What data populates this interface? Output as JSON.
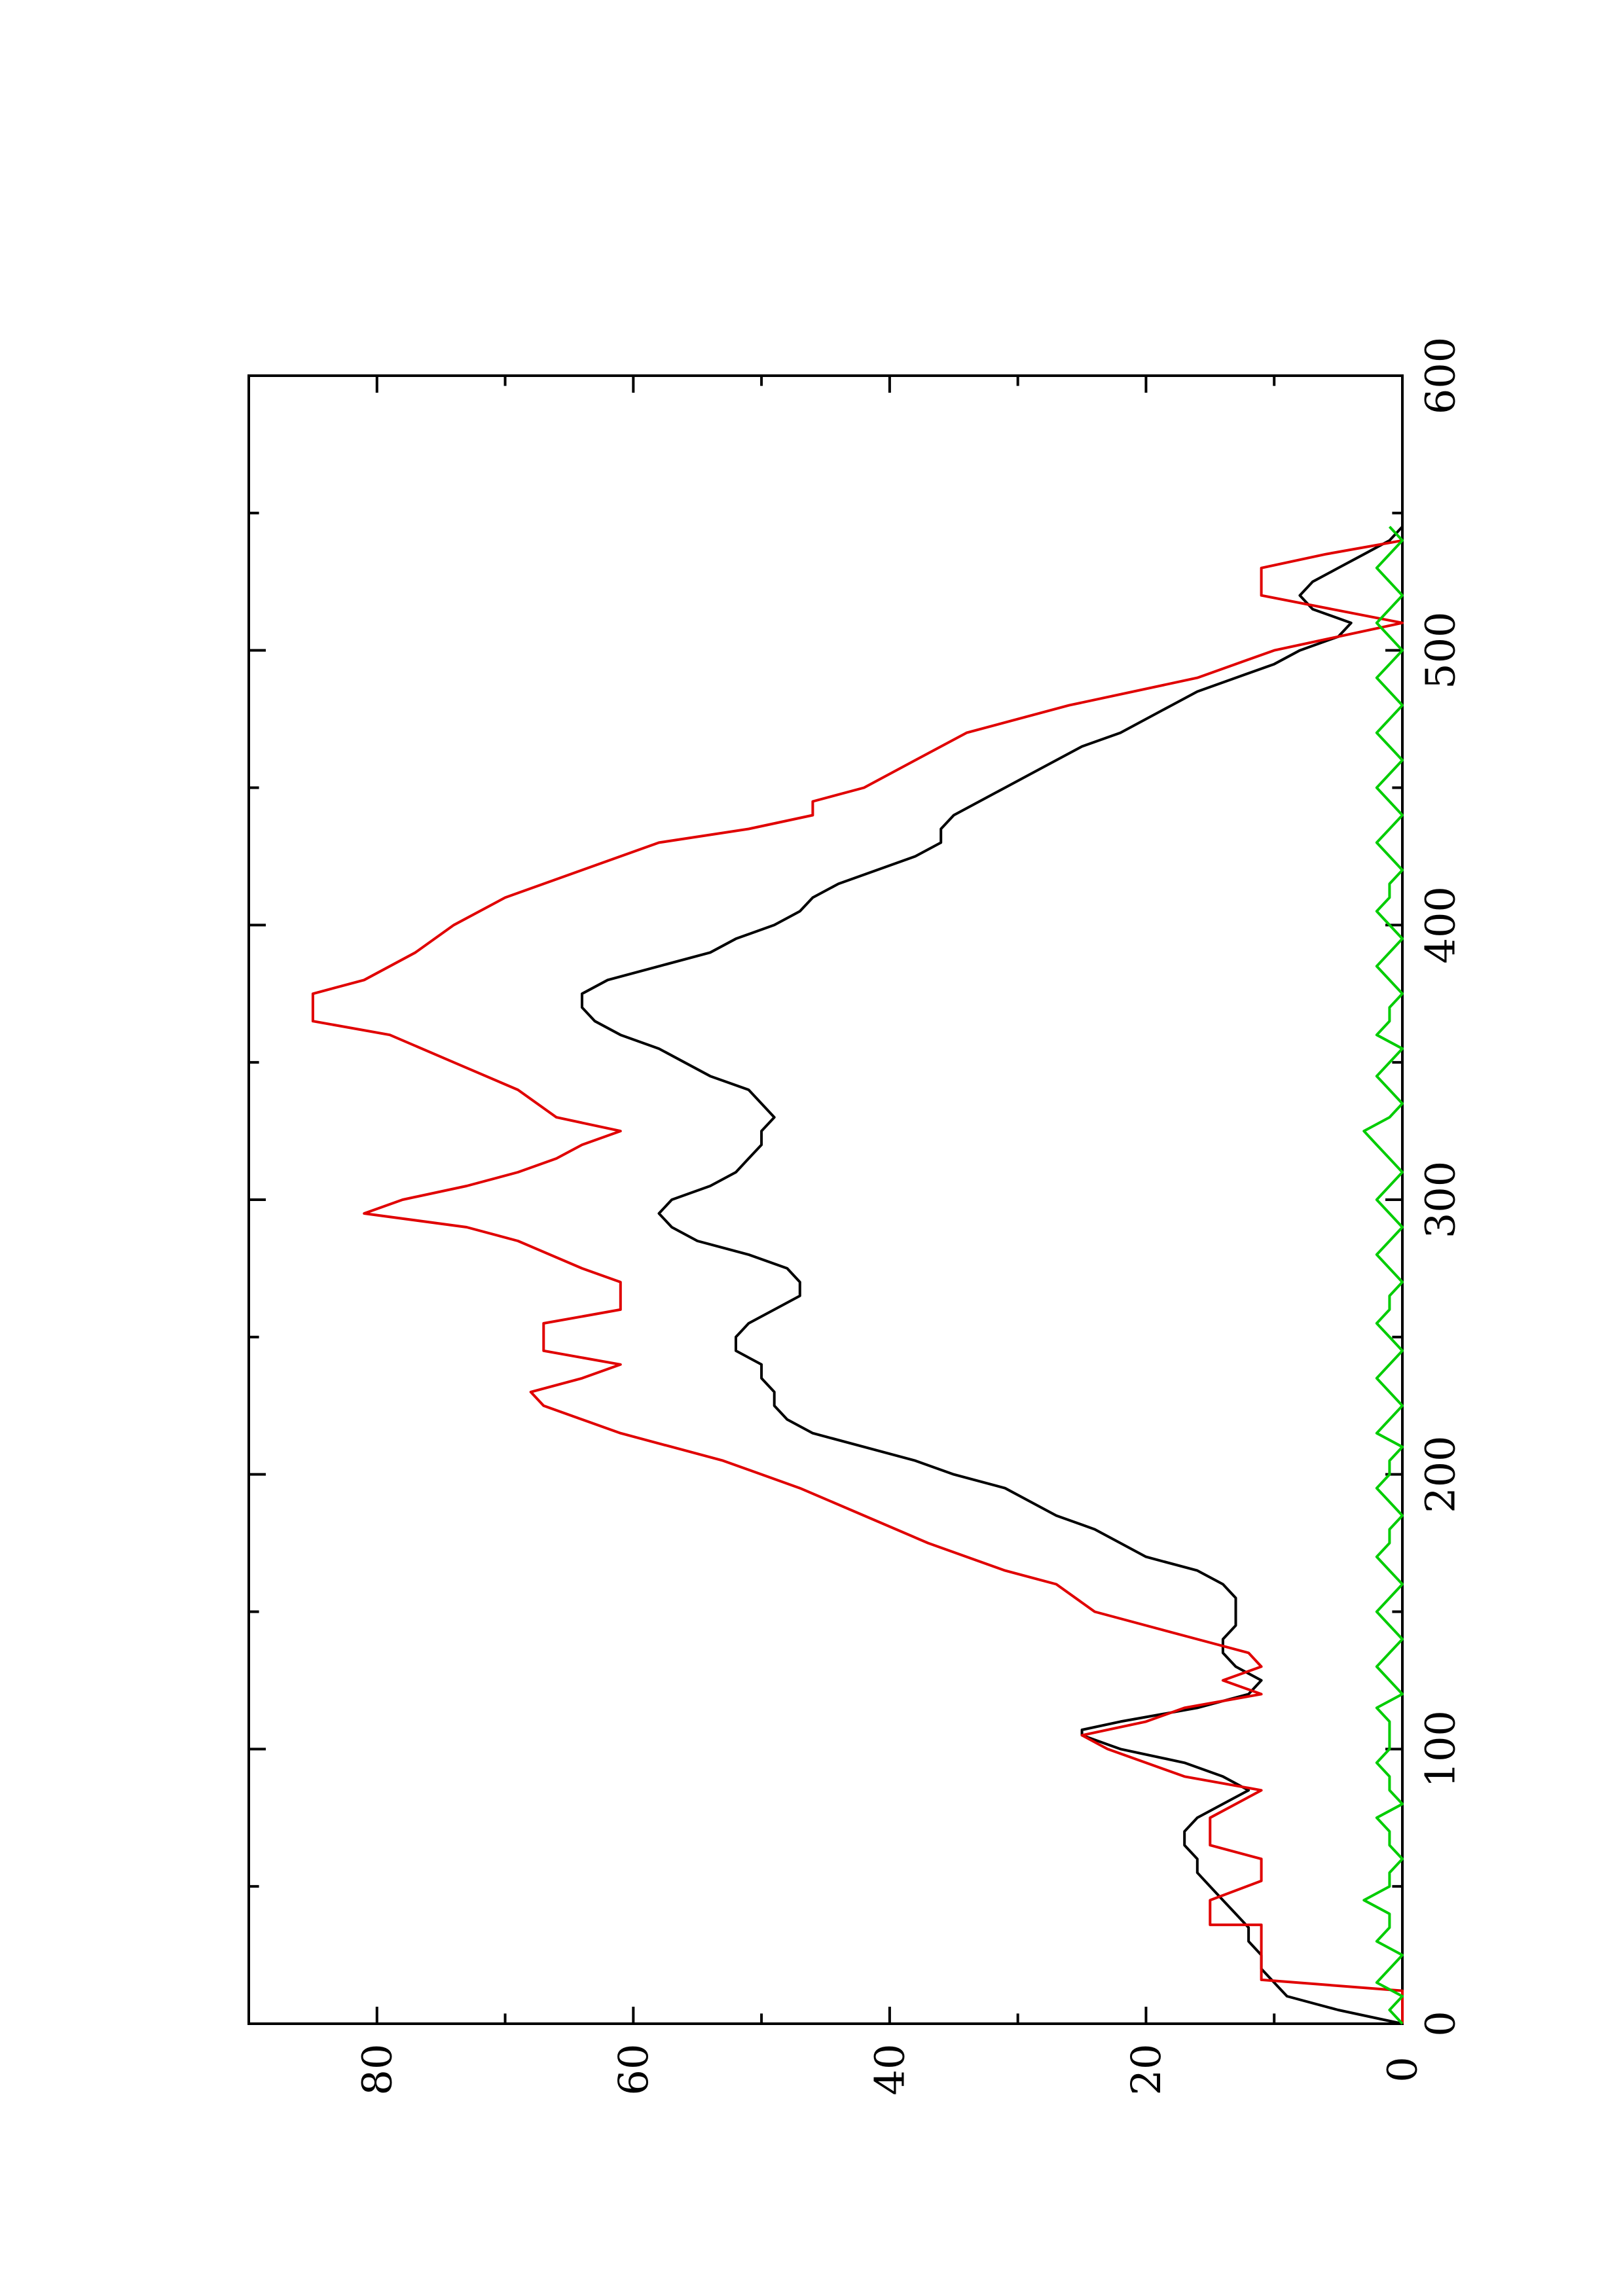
{
  "chart_data": {
    "type": "line",
    "orientation": "rotated-90-ccw",
    "xlim": [
      0,
      600
    ],
    "ylim": [
      0,
      90
    ],
    "x_ticks": [
      "0",
      "100",
      "200",
      "300",
      "400",
      "500",
      "600"
    ],
    "y_ticks": [
      "0",
      "20",
      "40",
      "60",
      "80"
    ],
    "series": [
      {
        "color": "#000000",
        "points": [
          [
            0,
            0
          ],
          [
            5,
            5
          ],
          [
            10,
            9
          ],
          [
            15,
            10
          ],
          [
            20,
            11
          ],
          [
            25,
            11
          ],
          [
            30,
            12
          ],
          [
            35,
            12
          ],
          [
            40,
            13
          ],
          [
            45,
            14
          ],
          [
            50,
            15
          ],
          [
            55,
            16
          ],
          [
            60,
            16
          ],
          [
            65,
            17
          ],
          [
            70,
            17
          ],
          [
            75,
            16
          ],
          [
            80,
            14
          ],
          [
            85,
            12
          ],
          [
            90,
            14
          ],
          [
            95,
            17
          ],
          [
            100,
            22
          ],
          [
            105,
            25
          ],
          [
            107,
            25
          ],
          [
            110,
            22
          ],
          [
            115,
            16
          ],
          [
            120,
            12
          ],
          [
            125,
            11
          ],
          [
            130,
            13
          ],
          [
            135,
            14
          ],
          [
            140,
            14
          ],
          [
            145,
            13
          ],
          [
            150,
            13
          ],
          [
            155,
            13
          ],
          [
            160,
            14
          ],
          [
            165,
            16
          ],
          [
            170,
            20
          ],
          [
            175,
            22
          ],
          [
            180,
            24
          ],
          [
            185,
            27
          ],
          [
            190,
            29
          ],
          [
            195,
            31
          ],
          [
            200,
            35
          ],
          [
            205,
            38
          ],
          [
            210,
            42
          ],
          [
            215,
            46
          ],
          [
            220,
            48
          ],
          [
            225,
            49
          ],
          [
            230,
            49
          ],
          [
            235,
            50
          ],
          [
            240,
            50
          ],
          [
            245,
            52
          ],
          [
            250,
            52
          ],
          [
            255,
            51
          ],
          [
            260,
            49
          ],
          [
            265,
            47
          ],
          [
            270,
            47
          ],
          [
            275,
            48
          ],
          [
            280,
            51
          ],
          [
            285,
            55
          ],
          [
            290,
            57
          ],
          [
            295,
            58
          ],
          [
            300,
            57
          ],
          [
            305,
            54
          ],
          [
            310,
            52
          ],
          [
            315,
            51
          ],
          [
            320,
            50
          ],
          [
            325,
            50
          ],
          [
            330,
            49
          ],
          [
            335,
            50
          ],
          [
            340,
            51
          ],
          [
            345,
            54
          ],
          [
            350,
            56
          ],
          [
            355,
            58
          ],
          [
            360,
            61
          ],
          [
            365,
            63
          ],
          [
            370,
            64
          ],
          [
            375,
            64
          ],
          [
            380,
            62
          ],
          [
            385,
            58
          ],
          [
            390,
            54
          ],
          [
            395,
            52
          ],
          [
            400,
            49
          ],
          [
            405,
            47
          ],
          [
            410,
            46
          ],
          [
            415,
            44
          ],
          [
            420,
            41
          ],
          [
            425,
            38
          ],
          [
            430,
            36
          ],
          [
            435,
            36
          ],
          [
            440,
            35
          ],
          [
            445,
            33
          ],
          [
            450,
            31
          ],
          [
            455,
            29
          ],
          [
            460,
            27
          ],
          [
            465,
            25
          ],
          [
            470,
            22
          ],
          [
            475,
            20
          ],
          [
            480,
            18
          ],
          [
            485,
            16
          ],
          [
            490,
            13
          ],
          [
            495,
            10
          ],
          [
            500,
            8
          ],
          [
            505,
            5
          ],
          [
            510,
            4
          ],
          [
            515,
            7
          ],
          [
            520,
            8
          ],
          [
            525,
            7
          ],
          [
            530,
            5
          ],
          [
            535,
            3
          ],
          [
            540,
            1
          ],
          [
            545,
            0
          ]
        ]
      },
      {
        "color": "#e00000",
        "points": [
          [
            0,
            0
          ],
          [
            12,
            0
          ],
          [
            16,
            11
          ],
          [
            36,
            11
          ],
          [
            36,
            15
          ],
          [
            45,
            15
          ],
          [
            52,
            11
          ],
          [
            60,
            11
          ],
          [
            65,
            15
          ],
          [
            75,
            15
          ],
          [
            85,
            11
          ],
          [
            90,
            17
          ],
          [
            95,
            20
          ],
          [
            100,
            23
          ],
          [
            105,
            25
          ],
          [
            110,
            20
          ],
          [
            115,
            17
          ],
          [
            120,
            11
          ],
          [
            125,
            14
          ],
          [
            130,
            11
          ],
          [
            135,
            12
          ],
          [
            140,
            16
          ],
          [
            145,
            20
          ],
          [
            150,
            24
          ],
          [
            160,
            27
          ],
          [
            165,
            31
          ],
          [
            175,
            37
          ],
          [
            185,
            42
          ],
          [
            195,
            47
          ],
          [
            205,
            53
          ],
          [
            215,
            61
          ],
          [
            225,
            67
          ],
          [
            230,
            68
          ],
          [
            235,
            64
          ],
          [
            240,
            61
          ],
          [
            245,
            67
          ],
          [
            255,
            67
          ],
          [
            260,
            61
          ],
          [
            270,
            61
          ],
          [
            275,
            64
          ],
          [
            285,
            69
          ],
          [
            290,
            73
          ],
          [
            295,
            81
          ],
          [
            300,
            78
          ],
          [
            305,
            73
          ],
          [
            310,
            69
          ],
          [
            315,
            66
          ],
          [
            320,
            64
          ],
          [
            325,
            61
          ],
          [
            330,
            66
          ],
          [
            340,
            69
          ],
          [
            350,
            74
          ],
          [
            360,
            79
          ],
          [
            365,
            85
          ],
          [
            370,
            85
          ],
          [
            375,
            85
          ],
          [
            380,
            81
          ],
          [
            390,
            77
          ],
          [
            400,
            74
          ],
          [
            410,
            70
          ],
          [
            420,
            64
          ],
          [
            430,
            58
          ],
          [
            435,
            51
          ],
          [
            440,
            46
          ],
          [
            445,
            46
          ],
          [
            450,
            42
          ],
          [
            460,
            38
          ],
          [
            470,
            34
          ],
          [
            480,
            26
          ],
          [
            490,
            16
          ],
          [
            500,
            10
          ],
          [
            505,
            5
          ],
          [
            510,
            0
          ],
          [
            520,
            11
          ],
          [
            525,
            11
          ],
          [
            530,
            11
          ],
          [
            535,
            6
          ],
          [
            540,
            0
          ]
        ]
      },
      {
        "color": "#00cc00",
        "points": [
          [
            0,
            0
          ],
          [
            5,
            1
          ],
          [
            10,
            0
          ],
          [
            15,
            2
          ],
          [
            20,
            1
          ],
          [
            25,
            0
          ],
          [
            30,
            2
          ],
          [
            35,
            1
          ],
          [
            40,
            1
          ],
          [
            45,
            3
          ],
          [
            50,
            1
          ],
          [
            55,
            1
          ],
          [
            60,
            0
          ],
          [
            65,
            1
          ],
          [
            70,
            1
          ],
          [
            75,
            2
          ],
          [
            80,
            0
          ],
          [
            85,
            1
          ],
          [
            90,
            1
          ],
          [
            95,
            2
          ],
          [
            100,
            1
          ],
          [
            105,
            1
          ],
          [
            110,
            1
          ],
          [
            115,
            2
          ],
          [
            120,
            0
          ],
          [
            125,
            1
          ],
          [
            130,
            2
          ],
          [
            135,
            1
          ],
          [
            140,
            0
          ],
          [
            145,
            1
          ],
          [
            150,
            2
          ],
          [
            155,
            1
          ],
          [
            160,
            0
          ],
          [
            165,
            1
          ],
          [
            170,
            2
          ],
          [
            175,
            1
          ],
          [
            180,
            1
          ],
          [
            185,
            0
          ],
          [
            190,
            1
          ],
          [
            195,
            2
          ],
          [
            200,
            1
          ],
          [
            205,
            1
          ],
          [
            210,
            0
          ],
          [
            215,
            2
          ],
          [
            220,
            1
          ],
          [
            225,
            0
          ],
          [
            230,
            1
          ],
          [
            235,
            2
          ],
          [
            240,
            1
          ],
          [
            245,
            0
          ],
          [
            250,
            1
          ],
          [
            255,
            2
          ],
          [
            260,
            1
          ],
          [
            265,
            1
          ],
          [
            270,
            0
          ],
          [
            275,
            1
          ],
          [
            280,
            2
          ],
          [
            285,
            1
          ],
          [
            290,
            0
          ],
          [
            295,
            1
          ],
          [
            300,
            2
          ],
          [
            305,
            1
          ],
          [
            310,
            0
          ],
          [
            315,
            1
          ],
          [
            320,
            2
          ],
          [
            325,
            3
          ],
          [
            330,
            1
          ],
          [
            335,
            0
          ],
          [
            340,
            1
          ],
          [
            345,
            2
          ],
          [
            350,
            1
          ],
          [
            355,
            0
          ],
          [
            360,
            2
          ],
          [
            365,
            1
          ],
          [
            370,
            1
          ],
          [
            375,
            0
          ],
          [
            380,
            1
          ],
          [
            385,
            2
          ],
          [
            390,
            1
          ],
          [
            395,
            0
          ],
          [
            400,
            1
          ],
          [
            405,
            2
          ],
          [
            410,
            1
          ],
          [
            415,
            1
          ],
          [
            420,
            0
          ],
          [
            425,
            1
          ],
          [
            430,
            2
          ],
          [
            435,
            1
          ],
          [
            440,
            0
          ],
          [
            445,
            1
          ],
          [
            450,
            2
          ],
          [
            455,
            1
          ],
          [
            460,
            0
          ],
          [
            465,
            1
          ],
          [
            470,
            2
          ],
          [
            475,
            1
          ],
          [
            480,
            0
          ],
          [
            485,
            1
          ],
          [
            490,
            2
          ],
          [
            495,
            1
          ],
          [
            500,
            0
          ],
          [
            505,
            1
          ],
          [
            510,
            2
          ],
          [
            515,
            1
          ],
          [
            520,
            0
          ],
          [
            525,
            1
          ],
          [
            530,
            2
          ],
          [
            535,
            1
          ],
          [
            540,
            0
          ],
          [
            545,
            1
          ]
        ]
      }
    ]
  }
}
